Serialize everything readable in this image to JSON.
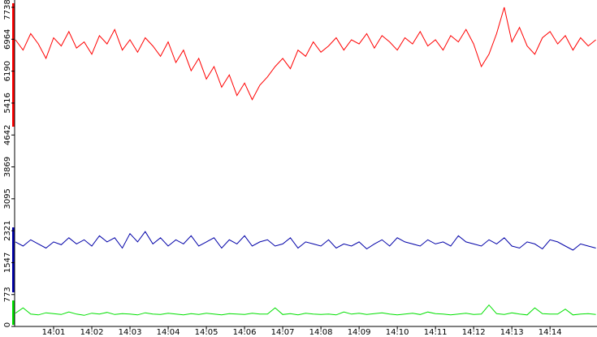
{
  "chart_data": {
    "type": "line",
    "x": [
      0,
      0.2,
      0.4,
      0.6,
      0.8,
      1,
      1.2,
      1.4,
      1.6,
      1.8,
      2,
      2.2,
      2.4,
      2.6,
      2.8,
      3,
      3.2,
      3.4,
      3.6,
      3.8,
      4,
      4.2,
      4.4,
      4.6,
      4.8,
      5,
      5.2,
      5.4,
      5.6,
      5.8,
      6,
      6.2,
      6.4,
      6.6,
      6.8,
      7,
      7.2,
      7.4,
      7.6,
      7.8,
      8,
      8.2,
      8.4,
      8.6,
      8.8,
      9,
      9.2,
      9.4,
      9.6,
      9.8,
      10,
      10.2,
      10.4,
      10.6,
      10.8,
      11,
      11.2,
      11.4,
      11.6,
      11.8,
      12,
      12.2,
      12.4,
      12.6,
      12.8,
      13,
      13.2,
      13.4,
      13.6,
      13.8,
      14,
      14.2,
      14.4,
      14.6,
      14.8,
      15,
      15.2
    ],
    "series": [
      {
        "color": "#ff0000",
        "values": [
          6950,
          6700,
          7100,
          6850,
          6500,
          7000,
          6800,
          7150,
          6750,
          6900,
          6600,
          7050,
          6850,
          7200,
          6700,
          6950,
          6650,
          7000,
          6800,
          6550,
          6900,
          6400,
          6700,
          6200,
          6500,
          6000,
          6300,
          5800,
          6100,
          5600,
          5900,
          5500,
          5850,
          6050,
          6300,
          6500,
          6250,
          6700,
          6550,
          6900,
          6650,
          6800,
          7000,
          6700,
          6950,
          6850,
          7100,
          6750,
          7050,
          6900,
          6700,
          7000,
          6850,
          7150,
          6800,
          6950,
          6700,
          7050,
          6900,
          7200,
          6850,
          6300,
          6600,
          7100,
          7738,
          6900,
          7250,
          6800,
          6600,
          7000,
          7150,
          6850,
          7050,
          6700,
          7000,
          6800,
          6950
        ]
      },
      {
        "color": "#0000a8",
        "values": [
          2050,
          1950,
          2100,
          2000,
          1900,
          2050,
          1980,
          2150,
          2000,
          2100,
          1950,
          2200,
          2050,
          2150,
          1900,
          2250,
          2050,
          2300,
          2000,
          2150,
          1950,
          2100,
          2000,
          2200,
          1950,
          2050,
          2150,
          1900,
          2100,
          2000,
          2200,
          1950,
          2050,
          2100,
          1950,
          2000,
          2150,
          1900,
          2050,
          2000,
          1950,
          2100,
          1900,
          2000,
          1950,
          2050,
          1880,
          2000,
          2100,
          1950,
          2150,
          2050,
          2000,
          1950,
          2100,
          2000,
          2050,
          1950,
          2200,
          2050,
          2000,
          1950,
          2100,
          2000,
          2150,
          1950,
          1900,
          2050,
          2000,
          1880,
          2100,
          2050,
          1950,
          1850,
          2000,
          1950,
          1900
        ]
      },
      {
        "color": "#00e000",
        "values": [
          320,
          450,
          300,
          280,
          330,
          310,
          290,
          350,
          300,
          270,
          320,
          300,
          340,
          290,
          310,
          300,
          280,
          330,
          300,
          290,
          320,
          300,
          280,
          310,
          290,
          320,
          300,
          280,
          310,
          300,
          290,
          320,
          300,
          300,
          450,
          290,
          310,
          280,
          320,
          300,
          290,
          300,
          280,
          350,
          300,
          320,
          290,
          310,
          330,
          300,
          280,
          300,
          320,
          290,
          350,
          310,
          300,
          280,
          300,
          320,
          290,
          300,
          520,
          310,
          290,
          330,
          300,
          280,
          450,
          310,
          300,
          300,
          420,
          280,
          300,
          310,
          290
        ]
      }
    ],
    "xlim": [
      0,
      15.23
    ],
    "xticks": [
      {
        "value": 1,
        "label": "14:01"
      },
      {
        "value": 2,
        "label": "14:02"
      },
      {
        "value": 3,
        "label": "14:03"
      },
      {
        "value": 4,
        "label": "14:04"
      },
      {
        "value": 5,
        "label": "14:05"
      },
      {
        "value": 6,
        "label": "14:06"
      },
      {
        "value": 7,
        "label": "14:07"
      },
      {
        "value": 8,
        "label": "14:08"
      },
      {
        "value": 9,
        "label": "14:09"
      },
      {
        "value": 10,
        "label": "14:10"
      },
      {
        "value": 11,
        "label": "14:11"
      },
      {
        "value": 12,
        "label": "14:12"
      },
      {
        "value": 13,
        "label": "14:13"
      },
      {
        "value": 14,
        "label": "14:14"
      }
    ],
    "ylim": [
      0,
      7738
    ],
    "yticks": [
      0,
      773,
      1547,
      2321,
      3095,
      3869,
      4642,
      5416,
      6190,
      6964,
      7738
    ]
  }
}
